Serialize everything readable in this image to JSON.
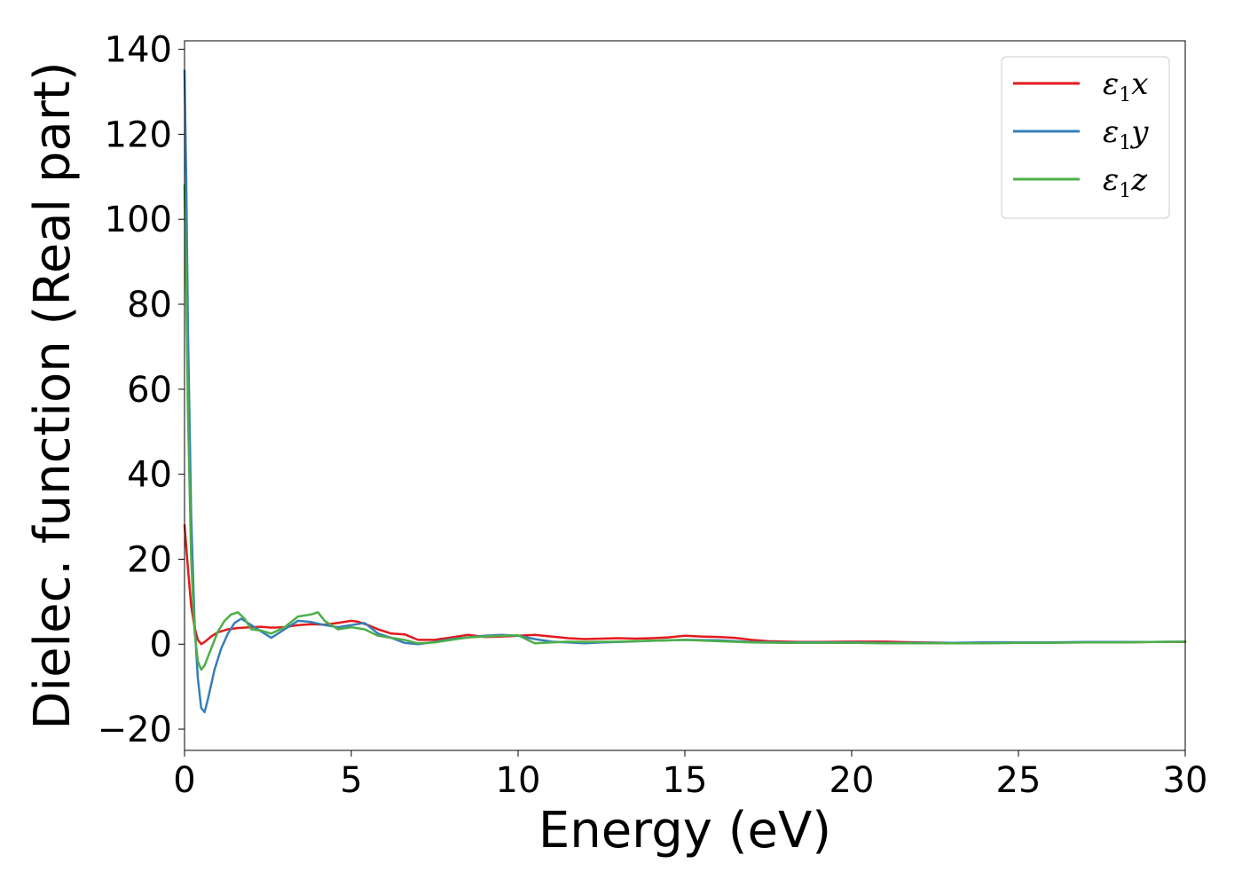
{
  "chart_data": {
    "type": "line",
    "title": "",
    "xlabel": "Energy (eV)",
    "ylabel": "Dielec. function (Real part)",
    "xlim": [
      0,
      30
    ],
    "ylim": [
      -25,
      142
    ],
    "xticks": [
      0,
      5,
      10,
      15,
      20,
      25,
      30
    ],
    "xtick_labels": [
      "0",
      "5",
      "10",
      "15",
      "20",
      "25",
      "30"
    ],
    "yticks": [
      -20,
      0,
      20,
      40,
      60,
      80,
      100,
      120,
      140
    ],
    "ytick_labels": [
      "−20",
      "0",
      "20",
      "40",
      "60",
      "80",
      "100",
      "120",
      "140"
    ],
    "grid": false,
    "legend_position": "top-right",
    "series": [
      {
        "name": "ε₁x",
        "legend_main": "ε",
        "legend_sub": "1",
        "legend_suffix": "x",
        "color": "#e41a1c",
        "x": [
          0,
          0.1,
          0.2,
          0.3,
          0.4,
          0.5,
          0.6,
          0.8,
          1.0,
          1.3,
          1.6,
          2.0,
          2.3,
          2.6,
          3.0,
          3.4,
          3.8,
          4.2,
          4.6,
          5.0,
          5.2,
          5.5,
          5.8,
          6.2,
          6.6,
          7.0,
          7.5,
          8.0,
          8.5,
          9.0,
          9.5,
          10.0,
          10.5,
          11.0,
          11.5,
          12.0,
          12.5,
          13.0,
          13.5,
          14.0,
          14.5,
          15.0,
          15.5,
          16.0,
          16.5,
          17.0,
          17.5,
          18.0,
          18.5,
          19.0,
          20.0,
          21.0,
          22.0,
          23.0,
          24.0,
          25.0,
          26.0,
          27.0,
          28.0,
          29.0,
          30.0
        ],
        "y": [
          28,
          18,
          9,
          4,
          1,
          0,
          0.5,
          1.8,
          2.8,
          3.5,
          3.8,
          4.0,
          4.1,
          3.9,
          4.0,
          4.5,
          4.7,
          4.6,
          5.0,
          5.5,
          5.3,
          4.5,
          3.5,
          2.5,
          2.3,
          1.0,
          1.0,
          1.6,
          2.2,
          1.7,
          1.8,
          2.0,
          2.2,
          1.8,
          1.4,
          1.2,
          1.3,
          1.4,
          1.3,
          1.4,
          1.6,
          2.0,
          1.8,
          1.7,
          1.5,
          1.0,
          0.7,
          0.6,
          0.5,
          0.5,
          0.6,
          0.6,
          0.4,
          0.3,
          0.3,
          0.3,
          0.4,
          0.4,
          0.4,
          0.5,
          0.5
        ]
      },
      {
        "name": "ε₁y",
        "legend_main": "ε",
        "legend_sub": "1",
        "legend_suffix": "y",
        "color": "#377eb8",
        "x": [
          0,
          0.05,
          0.1,
          0.2,
          0.3,
          0.4,
          0.5,
          0.6,
          0.7,
          0.9,
          1.1,
          1.3,
          1.5,
          1.7,
          2.0,
          2.3,
          2.6,
          3.0,
          3.4,
          3.8,
          4.2,
          4.6,
          5.0,
          5.4,
          5.8,
          6.2,
          6.6,
          7.0,
          7.5,
          8.0,
          8.5,
          9.0,
          9.5,
          10.0,
          10.5,
          11.0,
          11.5,
          12.0,
          12.5,
          13.0,
          14.0,
          15.0,
          16.0,
          17.0,
          18.0,
          19.0,
          20.0,
          21.0,
          22.0,
          23.0,
          24.0,
          25.0,
          26.0,
          27.0,
          28.0,
          29.0,
          30.0
        ],
        "y": [
          135,
          110,
          75,
          30,
          5,
          -8,
          -15,
          -16,
          -13,
          -6,
          -1,
          2.5,
          5,
          6,
          4.5,
          3,
          1.5,
          3.5,
          5.5,
          5.2,
          4.5,
          4.0,
          4.5,
          5.0,
          2.5,
          1.5,
          0.3,
          0,
          0.5,
          1.2,
          1.6,
          2.0,
          2.2,
          2.0,
          1.2,
          0.6,
          0.4,
          0.2,
          0.4,
          0.5,
          0.8,
          1.0,
          0.9,
          0.5,
          0.4,
          0.4,
          0.4,
          0.3,
          0.3,
          0.3,
          0.4,
          0.4,
          0.4,
          0.5,
          0.5,
          0.5,
          0.6
        ]
      },
      {
        "name": "ε₁z",
        "legend_main": "ε",
        "legend_sub": "1",
        "legend_suffix": "z",
        "color": "#4daf4a",
        "x": [
          0,
          0.05,
          0.1,
          0.2,
          0.3,
          0.4,
          0.5,
          0.6,
          0.8,
          1.0,
          1.2,
          1.4,
          1.6,
          1.8,
          2.0,
          2.3,
          2.6,
          3.0,
          3.4,
          3.8,
          4.0,
          4.2,
          4.6,
          5.0,
          5.4,
          5.8,
          6.2,
          6.6,
          7.0,
          7.5,
          8.0,
          8.5,
          9.0,
          9.5,
          10.0,
          10.5,
          11.0,
          11.5,
          12.0,
          13.0,
          14.0,
          15.0,
          16.0,
          17.0,
          18.0,
          19.0,
          20.0,
          21.0,
          22.0,
          23.0,
          24.0,
          25.0,
          26.0,
          27.0,
          28.0,
          29.0,
          30.0
        ],
        "y": [
          108,
          85,
          55,
          20,
          3,
          -4,
          -6,
          -5,
          -1,
          3,
          5.5,
          7,
          7.5,
          6,
          3.5,
          3.2,
          2.5,
          4,
          6.5,
          7,
          7.5,
          5.5,
          3.5,
          4,
          3.5,
          2.0,
          1.5,
          1.0,
          0.2,
          0.4,
          1.0,
          1.6,
          1.8,
          2.0,
          2.1,
          0.2,
          0.4,
          0.6,
          0.5,
          0.6,
          0.8,
          1.0,
          0.7,
          0.4,
          0.3,
          0.3,
          0.3,
          0.2,
          0.2,
          0.2,
          0.2,
          0.3,
          0.3,
          0.4,
          0.4,
          0.5,
          0.6
        ]
      }
    ]
  }
}
